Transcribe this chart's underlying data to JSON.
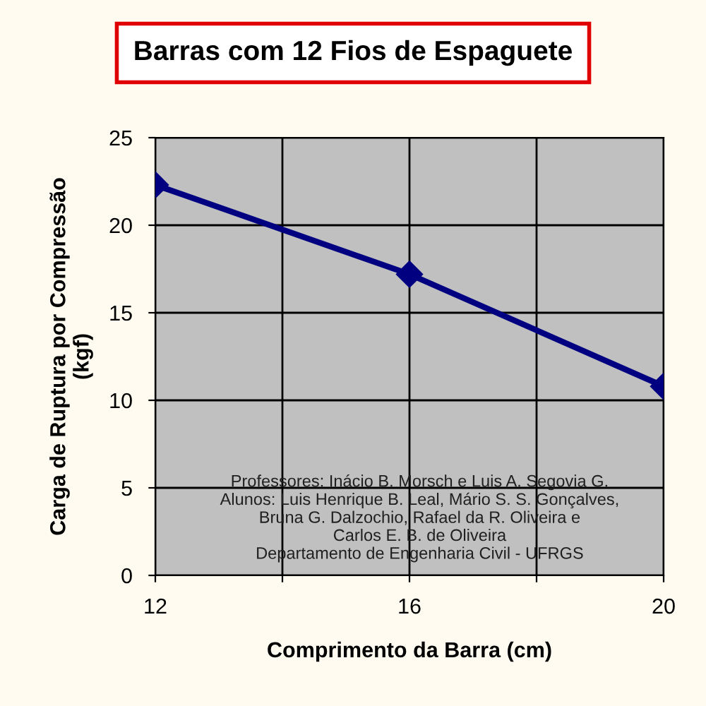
{
  "chart_data": {
    "type": "line",
    "title": "Barras com 12 Fios de Espaguete",
    "xlabel": "Comprimento da Barra (cm)",
    "ylabel": "Carga de Ruptura por Compressão\n(kgf)",
    "x": [
      12,
      16,
      20
    ],
    "series": [
      {
        "color": "#000080",
        "values": [
          22.3,
          17.2,
          10.8
        ]
      }
    ],
    "xlim": [
      12,
      20
    ],
    "xticks": [
      12,
      {
        "value": 14,
        "label": null
      },
      16,
      {
        "value": 18,
        "label": null
      },
      20
    ],
    "ylim": [
      0,
      25
    ],
    "yticks": [
      0,
      5,
      10,
      15,
      20,
      25
    ],
    "grid": true,
    "legend": false,
    "marker": "diamond",
    "line_style": "solid",
    "annotations": [
      "Professores: Inácio B. Morsch e Luis A. Segovia G.\nAlunos: Luis Henrique B. Leal, Mário S. S. Gonçalves,\nBruna G. Dalzochio, Rafael da R. Oliveira e\nCarlos E. B. de Oliveira\nDepartamento de Engenharia Civil - UFRGS"
    ]
  }
}
